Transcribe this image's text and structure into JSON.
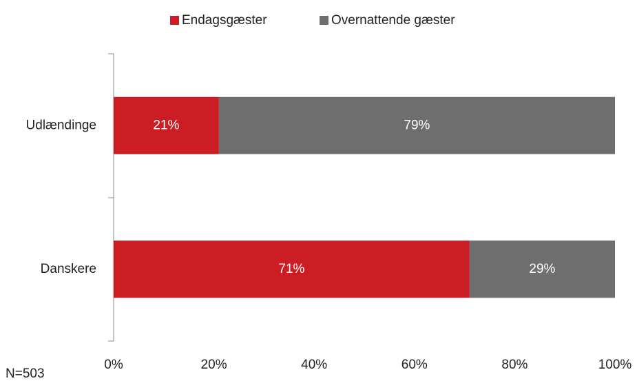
{
  "chart_data": {
    "type": "stacked_bar_horizontal",
    "categories": [
      "Udlændinge",
      "Danskere"
    ],
    "series": [
      {
        "name": "Endagsgæster",
        "color": "#cc1c24",
        "values": [
          21,
          71
        ],
        "value_labels": [
          "21%",
          "71%"
        ]
      },
      {
        "name": "Overnattende gæster",
        "color": "#6e6e6e",
        "values": [
          79,
          29
        ],
        "value_labels": [
          "79%",
          "29%"
        ]
      }
    ],
    "xlim": [
      0,
      100
    ],
    "xticks": [
      {
        "value": 0,
        "label": "0%"
      },
      {
        "value": 20,
        "label": "20%"
      },
      {
        "value": 40,
        "label": "40%"
      },
      {
        "value": 60,
        "label": "60%"
      },
      {
        "value": 80,
        "label": "80%"
      },
      {
        "value": 100,
        "label": "100%"
      }
    ],
    "legend": "top",
    "grid": false,
    "annotation": "N=503"
  }
}
